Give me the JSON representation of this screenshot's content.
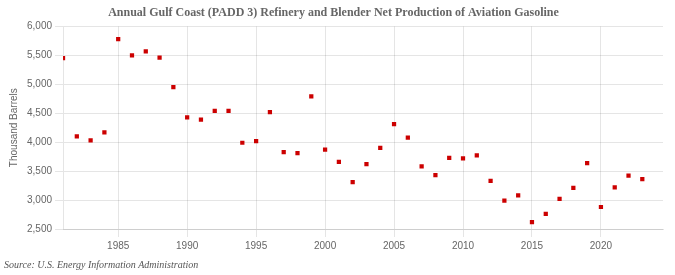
{
  "chart_data": {
    "type": "scatter",
    "title": "Annual Gulf Coast (PADD 3) Refinery and Blender Net Production of Aviation Gasoline",
    "ylabel": "Thousand Barrels",
    "annotations": [
      "Source: U.S. Energy Information Administration"
    ],
    "x": [
      1981,
      1982,
      1983,
      1984,
      1985,
      1986,
      1987,
      1988,
      1989,
      1990,
      1991,
      1992,
      1993,
      1994,
      1995,
      1996,
      1997,
      1998,
      1999,
      2000,
      2001,
      2002,
      2003,
      2004,
      2005,
      2006,
      2007,
      2008,
      2009,
      2010,
      2011,
      2012,
      2013,
      2014,
      2015,
      2016,
      2017,
      2018,
      2019,
      2020,
      2021,
      2022,
      2023
    ],
    "values": [
      5450,
      4100,
      4030,
      4170,
      5780,
      5500,
      5570,
      5460,
      4950,
      4430,
      4390,
      4540,
      4540,
      3990,
      4020,
      4520,
      3830,
      3810,
      4790,
      3870,
      3660,
      3310,
      3620,
      3900,
      4310,
      4080,
      3580,
      3430,
      3730,
      3720,
      3770,
      3330,
      2990,
      3080,
      2620,
      2760,
      3020,
      3210,
      3640,
      2880,
      3220,
      3420,
      3360
    ],
    "color": "#cc0000",
    "marker": "square",
    "xlim": [
      1981,
      2024.5
    ],
    "ylim": [
      2500,
      6000
    ],
    "xticks": [
      1985,
      1990,
      1995,
      2000,
      2005,
      2010,
      2015,
      2020
    ],
    "yticks": [
      {
        "value": 2500,
        "label": "2,500"
      },
      {
        "value": 3000,
        "label": "3,000"
      },
      {
        "value": 3500,
        "label": "3,500"
      },
      {
        "value": 4000,
        "label": "4,000"
      },
      {
        "value": 4500,
        "label": "4,500"
      },
      {
        "value": 5000,
        "label": "5,000"
      },
      {
        "value": 5500,
        "label": "5,500"
      },
      {
        "value": 6000,
        "label": "6,000"
      }
    ],
    "grid": true
  }
}
